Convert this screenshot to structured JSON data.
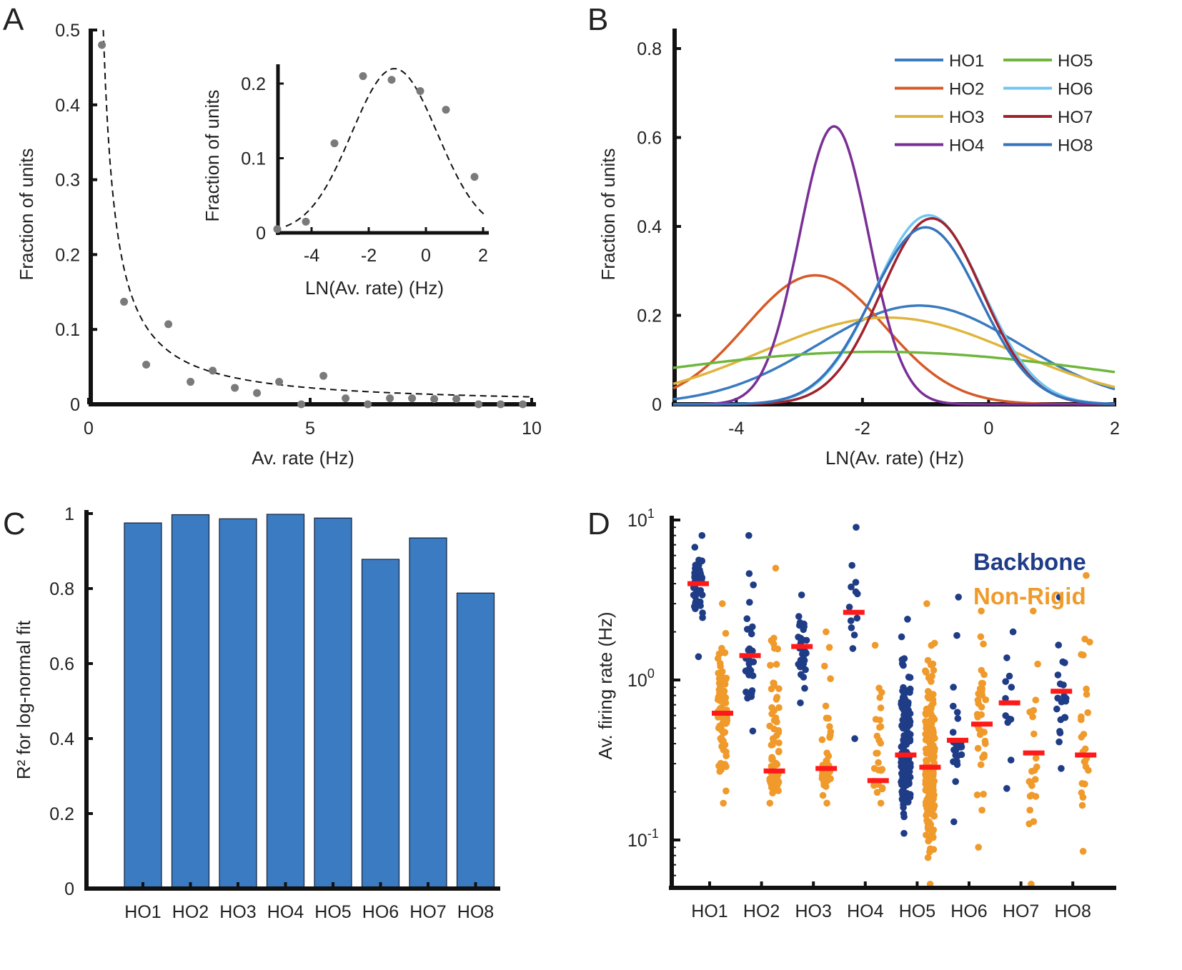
{
  "colors": {
    "HO1": "#3a7bbf",
    "HO2": "#d65a26",
    "HO3": "#e0b53e",
    "HO4": "#7a2f96",
    "HO5": "#6fb63e",
    "HO6": "#72c6ef",
    "HO7": "#a0222e",
    "HO8": "#3474bd",
    "bar": "#3b7bc1",
    "backbone": "#1f3c87",
    "nonrigid": "#ef9a2b",
    "median": "#ff1a1a",
    "dots": "#7a7a7a"
  },
  "chart_data": [
    {
      "panel": "A",
      "type": "scatter",
      "xlabel": "Av. rate (Hz)",
      "ylabel": "Fraction of units",
      "xlim": [
        0,
        10
      ],
      "ylim": [
        0,
        0.5
      ],
      "xticks": [
        "0",
        "5",
        "10"
      ],
      "yticks": [
        "0",
        "0.1",
        "0.2",
        "0.3",
        "0.4",
        "0.5"
      ],
      "points": [
        [
          0.3,
          0.48
        ],
        [
          0.8,
          0.137
        ],
        [
          1.3,
          0.053
        ],
        [
          1.8,
          0.107
        ],
        [
          2.3,
          0.03
        ],
        [
          2.8,
          0.045
        ],
        [
          3.3,
          0.022
        ],
        [
          3.8,
          0.015
        ],
        [
          4.3,
          0.03
        ],
        [
          4.8,
          0.0
        ],
        [
          5.3,
          0.038
        ],
        [
          5.8,
          0.008
        ],
        [
          6.3,
          0.0
        ],
        [
          6.8,
          0.008
        ],
        [
          7.3,
          0.008
        ],
        [
          7.8,
          0.007
        ],
        [
          8.3,
          0.007
        ],
        [
          8.8,
          0.0
        ],
        [
          9.3,
          0.0
        ],
        [
          9.8,
          0.0
        ]
      ],
      "fit": "dashed curve",
      "inset": {
        "type": "scatter",
        "xlabel": "LN(Av. rate) (Hz)",
        "ylabel": "Fraction of units",
        "xlim": [
          -5.2,
          2.1
        ],
        "ylim": [
          0,
          0.23
        ],
        "xticks": [
          "-4",
          "-2",
          "0",
          "2"
        ],
        "yticks": [
          "0",
          "0.1",
          "0.2"
        ],
        "points": [
          [
            -5.2,
            0.005
          ],
          [
            -4.2,
            0.015
          ],
          [
            -3.2,
            0.12
          ],
          [
            -2.2,
            0.21
          ],
          [
            -1.2,
            0.205
          ],
          [
            -0.2,
            0.19
          ],
          [
            0.7,
            0.165
          ],
          [
            1.7,
            0.075
          ]
        ],
        "fit": {
          "mu": -1.1,
          "sigma": 1.5,
          "amplitude": 0.22
        }
      }
    },
    {
      "panel": "B",
      "type": "line",
      "xlabel": "LN(Av. rate) (Hz)",
      "ylabel": "Fraction of units",
      "xlim": [
        -5.0,
        2.0
      ],
      "ylim": [
        0,
        0.8
      ],
      "xticks": [
        "-4",
        "-2",
        "0",
        "2"
      ],
      "yticks": [
        "0",
        "0.2",
        "0.4",
        "0.6",
        "0.8"
      ],
      "series": [
        {
          "name": "HO1",
          "mu": -1.1,
          "sigma": 1.6,
          "amplitude": 0.222
        },
        {
          "name": "HO2",
          "mu": -2.75,
          "sigma": 1.1,
          "amplitude": 0.29
        },
        {
          "name": "HO3",
          "mu": -1.6,
          "sigma": 2.0,
          "amplitude": 0.195
        },
        {
          "name": "HO4",
          "mu": -2.45,
          "sigma": 0.55,
          "amplitude": 0.625
        },
        {
          "name": "HO5",
          "mu": -1.75,
          "sigma": 3.8,
          "amplitude": 0.118
        },
        {
          "name": "HO6",
          "mu": -0.95,
          "sigma": 0.85,
          "amplitude": 0.425
        },
        {
          "name": "HO7",
          "mu": -0.9,
          "sigma": 0.8,
          "amplitude": 0.418
        },
        {
          "name": "HO8",
          "mu": -1.0,
          "sigma": 0.85,
          "amplitude": 0.398
        }
      ]
    },
    {
      "panel": "C",
      "type": "bar",
      "ylabel": "R² for log-normal fit",
      "ylim": [
        0,
        1
      ],
      "yticks": [
        "0",
        "0.2",
        "0.4",
        "0.6",
        "0.8",
        "1"
      ],
      "categories": [
        "HO1",
        "HO2",
        "HO3",
        "HO4",
        "HO5",
        "HO6",
        "HO7",
        "HO8"
      ],
      "values": [
        0.975,
        0.997,
        0.986,
        0.998,
        0.988,
        0.878,
        0.935,
        0.788
      ]
    },
    {
      "panel": "D",
      "type": "scatter",
      "ylabel": "Av. firing rate (Hz)",
      "yscale": "log",
      "ylim": [
        0.053,
        10
      ],
      "yticks": [
        {
          "base": "10",
          "exp": "1"
        },
        {
          "base": "10",
          "exp": "0"
        },
        {
          "base": "10",
          "exp": "-1"
        }
      ],
      "categories": [
        "HO1",
        "HO2",
        "HO3",
        "HO4",
        "HO5",
        "HO6",
        "HO7",
        "HO8"
      ],
      "legend": [
        "Backbone",
        "Non-Rigid"
      ],
      "groups": [
        {
          "name": "HO1",
          "backbone": {
            "n": 45,
            "min": 1.4,
            "max": 8.0,
            "median": 4.0
          },
          "nonrigid": {
            "n": 95,
            "min": 0.17,
            "max": 3.0,
            "median": 0.62
          }
        },
        {
          "name": "HO2",
          "backbone": {
            "n": 30,
            "min": 0.48,
            "max": 8.0,
            "median": 1.42
          },
          "nonrigid": {
            "n": 80,
            "min": 0.17,
            "max": 5.0,
            "median": 0.27
          }
        },
        {
          "name": "HO3",
          "backbone": {
            "n": 30,
            "min": 0.72,
            "max": 3.4,
            "median": 1.62
          },
          "nonrigid": {
            "n": 35,
            "min": 0.17,
            "max": 2.0,
            "median": 0.28
          }
        },
        {
          "name": "HO4",
          "backbone": {
            "n": 13,
            "min": 0.43,
            "max": 9.0,
            "median": 2.65
          },
          "nonrigid": {
            "n": 30,
            "min": 0.17,
            "max": 1.65,
            "median": 0.235
          }
        },
        {
          "name": "HO5",
          "backbone": {
            "n": 180,
            "min": 0.11,
            "max": 2.4,
            "median": 0.34
          },
          "nonrigid": {
            "n": 200,
            "min": 0.053,
            "max": 3.0,
            "median": 0.285
          }
        },
        {
          "name": "HO6",
          "backbone": {
            "n": 25,
            "min": 0.13,
            "max": 3.3,
            "median": 0.42
          },
          "nonrigid": {
            "n": 35,
            "min": 0.09,
            "max": 2.7,
            "median": 0.53
          }
        },
        {
          "name": "HO7",
          "backbone": {
            "n": 12,
            "min": 0.21,
            "max": 2.0,
            "median": 0.72
          },
          "nonrigid": {
            "n": 22,
            "min": 0.053,
            "max": 2.7,
            "median": 0.35
          }
        },
        {
          "name": "HO8",
          "backbone": {
            "n": 20,
            "min": 0.28,
            "max": 3.3,
            "median": 0.85
          },
          "nonrigid": {
            "n": 25,
            "min": 0.085,
            "max": 4.5,
            "median": 0.34
          }
        }
      ]
    }
  ],
  "panels": {
    "a": "A",
    "b": "B",
    "c": "C",
    "d": "D"
  },
  "legend_d": {
    "backbone": "Backbone",
    "nonrigid": "Non-Rigid"
  }
}
